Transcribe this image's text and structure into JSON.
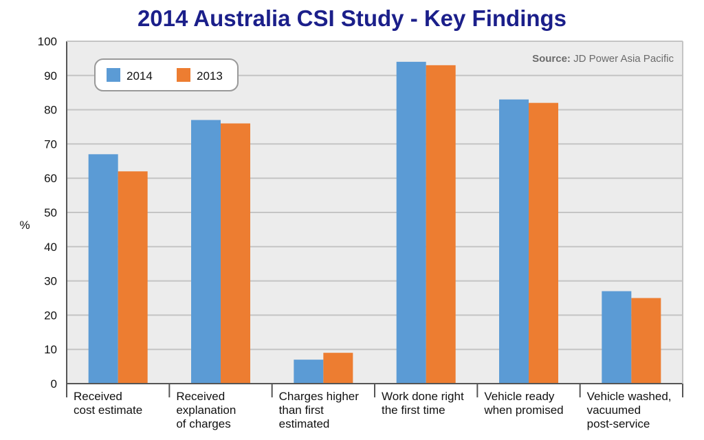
{
  "chart_data": {
    "type": "bar",
    "title": "2014 Australia CSI Study - Key Findings",
    "ylabel": "%",
    "xlabel": "",
    "ylim": [
      0,
      100
    ],
    "yticks": [
      "0",
      "10",
      "20",
      "30",
      "40",
      "50",
      "60",
      "70",
      "80",
      "90",
      "100"
    ],
    "grid": true,
    "legend_position": "top-left",
    "categories": [
      [
        "Received",
        "cost estimate"
      ],
      [
        "Received",
        "explanation",
        "of charges"
      ],
      [
        "Charges higher",
        "than first",
        "estimated"
      ],
      [
        "Work done right",
        "the first time"
      ],
      [
        "Vehicle ready",
        "when promised"
      ],
      [
        "Vehicle washed,",
        "vacuumed",
        "post-service"
      ]
    ],
    "series": [
      {
        "name": "2014",
        "color": "#5b9bd5",
        "values": [
          67,
          77,
          7,
          94,
          83,
          27
        ]
      },
      {
        "name": "2013",
        "color": "#ed7d31",
        "values": [
          62,
          76,
          9,
          93,
          82,
          25
        ]
      }
    ],
    "source_label": "Source:",
    "source_text": " JD Power Asia Pacific"
  },
  "colors": {
    "plot_background": "#ececec",
    "gridline": "#c4c4c4",
    "axis": "#555555",
    "title": "#1b1f8a"
  }
}
